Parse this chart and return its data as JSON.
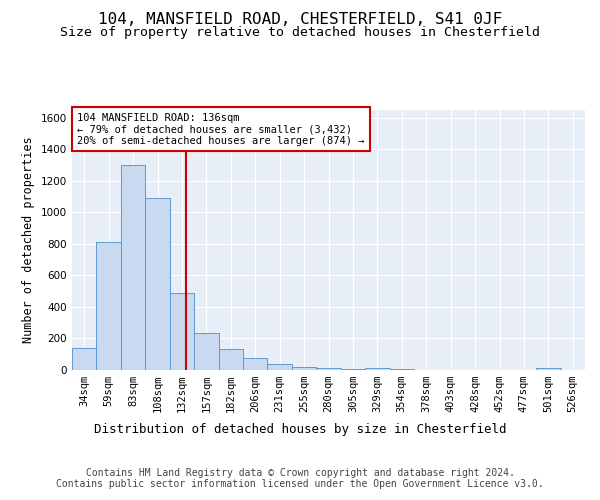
{
  "title1": "104, MANSFIELD ROAD, CHESTERFIELD, S41 0JF",
  "title2": "Size of property relative to detached houses in Chesterfield",
  "xlabel": "Distribution of detached houses by size in Chesterfield",
  "ylabel": "Number of detached properties",
  "categories": [
    "34sqm",
    "59sqm",
    "83sqm",
    "108sqm",
    "132sqm",
    "157sqm",
    "182sqm",
    "206sqm",
    "231sqm",
    "255sqm",
    "280sqm",
    "305sqm",
    "329sqm",
    "354sqm",
    "378sqm",
    "403sqm",
    "428sqm",
    "452sqm",
    "477sqm",
    "501sqm",
    "526sqm"
  ],
  "values": [
    140,
    810,
    1300,
    1090,
    490,
    235,
    135,
    75,
    40,
    20,
    15,
    8,
    12,
    5,
    3,
    2,
    2,
    2,
    2,
    15,
    0
  ],
  "bar_color": "#c9d9f0",
  "bar_edgecolor": "#5b9bd5",
  "annotation_text": "104 MANSFIELD ROAD: 136sqm\n← 79% of detached houses are smaller (3,432)\n20% of semi-detached houses are larger (874) →",
  "annotation_box_color": "#ffffff",
  "annotation_box_edgecolor": "#cc0000",
  "red_line_color": "#cc0000",
  "ylim": [
    0,
    1650
  ],
  "yticks": [
    0,
    200,
    400,
    600,
    800,
    1000,
    1200,
    1400,
    1600
  ],
  "background_color": "#e8eef8",
  "footer": "Contains HM Land Registry data © Crown copyright and database right 2024.\nContains public sector information licensed under the Open Government Licence v3.0.",
  "title1_fontsize": 11.5,
  "title2_fontsize": 9.5,
  "xlabel_fontsize": 9,
  "ylabel_fontsize": 8.5,
  "footer_fontsize": 7,
  "tick_fontsize": 7.5,
  "annot_fontsize": 7.5
}
